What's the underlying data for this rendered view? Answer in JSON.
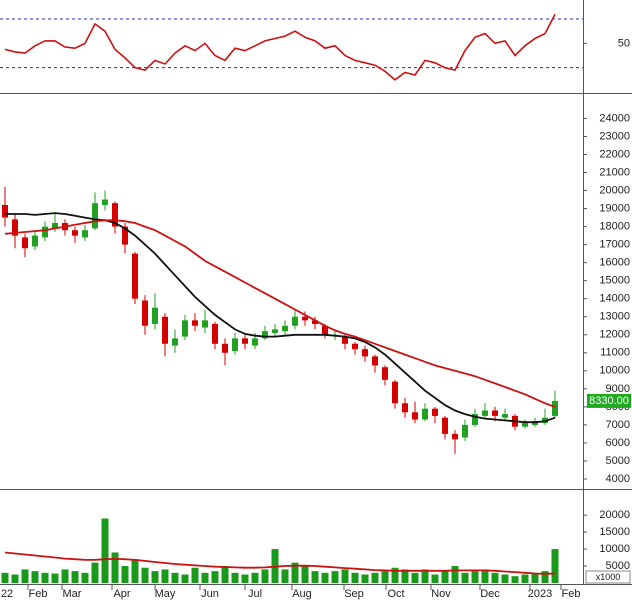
{
  "chart_data": [
    {
      "type": "line",
      "color": "#cc1111",
      "ylim": [
        10,
        84
      ],
      "yticks": [
        50
      ],
      "ref_lines": [
        30,
        70
      ],
      "ref_color": "#2233aa",
      "values": [
        45,
        43,
        42,
        48,
        52,
        52,
        47,
        46,
        50,
        66,
        60,
        45,
        38,
        30,
        28,
        36,
        33,
        42,
        48,
        44,
        50,
        40,
        36,
        46,
        44,
        48,
        52,
        54,
        56,
        60,
        55,
        52,
        46,
        48,
        40,
        36,
        34,
        32,
        27,
        20,
        26,
        24,
        36,
        34,
        30,
        28,
        44,
        55,
        58,
        50,
        52,
        40,
        48,
        54,
        58,
        74
      ]
    },
    {
      "type": "candlestick",
      "up_color": "#22a022",
      "down_color": "#d40000",
      "ylim": [
        3500,
        25300
      ],
      "yticks": [
        4000,
        5000,
        6000,
        7000,
        8000,
        9000,
        10000,
        11000,
        12000,
        13000,
        14000,
        15000,
        16000,
        17000,
        18000,
        19000,
        20000,
        21000,
        22000,
        23000,
        24000
      ],
      "open": [
        19200,
        18400,
        17400,
        16900,
        17400,
        17900,
        18200,
        17800,
        17400,
        17900,
        19200,
        19300,
        18000,
        16500,
        13900,
        12600,
        13000,
        11400,
        11900,
        12800,
        12400,
        12600,
        11500,
        11100,
        11800,
        11400,
        11800,
        12100,
        12200,
        12500,
        13000,
        12800,
        12500,
        12000,
        11900,
        11500,
        11200,
        10800,
        10200,
        9400,
        8200,
        7700,
        7300,
        7900,
        7400,
        6500,
        6300,
        7000,
        7500,
        7800,
        7400,
        7500,
        6900,
        7000,
        7100,
        7500
      ],
      "high": [
        20200,
        18700,
        17600,
        17800,
        18300,
        18800,
        18400,
        18000,
        18100,
        19900,
        20000,
        19400,
        18200,
        16600,
        14200,
        14300,
        13200,
        12300,
        13100,
        13200,
        13400,
        12700,
        11800,
        12100,
        12000,
        12100,
        12500,
        12600,
        12800,
        13400,
        13300,
        13000,
        12600,
        12300,
        12000,
        11600,
        11400,
        10900,
        10300,
        9500,
        8500,
        8300,
        8200,
        8000,
        7500,
        6700,
        7300,
        7900,
        8200,
        8000,
        7900,
        7600,
        7300,
        7400,
        7900,
        8900
      ],
      "low": [
        18000,
        16800,
        16300,
        16700,
        17200,
        17700,
        17500,
        17100,
        17200,
        17800,
        18900,
        17600,
        16500,
        13700,
        12000,
        12300,
        10800,
        11000,
        11700,
        12200,
        12100,
        11200,
        10300,
        10900,
        11200,
        11200,
        11700,
        11900,
        12000,
        12300,
        12500,
        12300,
        11800,
        11700,
        11200,
        10900,
        10500,
        9900,
        9200,
        7900,
        7400,
        7100,
        7200,
        7100,
        6200,
        5400,
        6100,
        6900,
        7400,
        7200,
        7200,
        6700,
        6800,
        6900,
        7000,
        7400
      ],
      "close": [
        18500,
        17500,
        16800,
        17500,
        18000,
        18200,
        17800,
        17500,
        17800,
        19300,
        19500,
        18000,
        17000,
        14000,
        12500,
        13500,
        11500,
        11800,
        12800,
        12500,
        12800,
        11500,
        11000,
        11800,
        11500,
        11800,
        12200,
        12300,
        12500,
        13000,
        12800,
        12600,
        12000,
        12000,
        11500,
        11200,
        10800,
        10300,
        9500,
        8200,
        7700,
        7300,
        7900,
        7500,
        6500,
        6200,
        7000,
        7600,
        7800,
        7500,
        7600,
        6900,
        7100,
        7200,
        7400,
        8330
      ],
      "close_label": "8330.00",
      "label_color": "#1faa1f",
      "overlays": [
        {
          "color": "#111111",
          "values": [
            18700,
            18700,
            18700,
            18650,
            18700,
            18750,
            18700,
            18600,
            18500,
            18400,
            18350,
            18200,
            17900,
            17500,
            17000,
            16500,
            15900,
            15300,
            14700,
            14100,
            13600,
            13100,
            12700,
            12300,
            12050,
            11950,
            11900,
            11900,
            11950,
            12000,
            12000,
            12000,
            12000,
            11950,
            11900,
            11800,
            11600,
            11300,
            10900,
            10400,
            9900,
            9400,
            8900,
            8500,
            8100,
            7800,
            7600,
            7450,
            7350,
            7300,
            7250,
            7200,
            7150,
            7150,
            7200,
            7400
          ]
        },
        {
          "color": "#cc1111",
          "values": [
            17600,
            17650,
            17700,
            17750,
            17800,
            17900,
            18000,
            18100,
            18200,
            18300,
            18350,
            18350,
            18300,
            18200,
            18000,
            17800,
            17500,
            17200,
            16900,
            16500,
            16100,
            15800,
            15500,
            15200,
            14900,
            14600,
            14300,
            14000,
            13700,
            13400,
            13100,
            12800,
            12500,
            12250,
            12050,
            11900,
            11700,
            11500,
            11300,
            11100,
            10900,
            10700,
            10500,
            10300,
            10150,
            10000,
            9850,
            9700,
            9500,
            9300,
            9100,
            8900,
            8700,
            8450,
            8200,
            8000
          ]
        }
      ]
    },
    {
      "type": "bar",
      "color": "#1a9a1a",
      "ylim": [
        0,
        27400
      ],
      "yticks": [
        5000,
        10000,
        15000,
        20000
      ],
      "unit_label": "x1000",
      "values": [
        3000,
        2500,
        4000,
        3500,
        3000,
        2800,
        4000,
        3500,
        3000,
        6000,
        19000,
        9000,
        5000,
        7000,
        4500,
        3500,
        4000,
        3000,
        2500,
        4500,
        3000,
        3500,
        5000,
        3000,
        2500,
        3000,
        4000,
        10000,
        4000,
        6000,
        5000,
        3500,
        3000,
        3500,
        4000,
        3000,
        2500,
        3000,
        3500,
        4500,
        4000,
        3000,
        4000,
        2500,
        3500,
        5000,
        3000,
        3500,
        4000,
        3000,
        2500,
        2000,
        2500,
        3000,
        3500,
        10000
      ],
      "overlays": [
        {
          "color": "#cc1111",
          "values": [
            9000,
            8700,
            8400,
            8100,
            7800,
            7500,
            7200,
            7000,
            6800,
            6800,
            7000,
            7100,
            7000,
            6800,
            6500,
            6200,
            5900,
            5600,
            5400,
            5200,
            5000,
            4800,
            4700,
            4600,
            4500,
            4500,
            4600,
            4800,
            5000,
            5100,
            5100,
            5000,
            4800,
            4600,
            4400,
            4200,
            4000,
            3800,
            3700,
            3600,
            3600,
            3600,
            3600,
            3600,
            3600,
            3700,
            3700,
            3700,
            3700,
            3600,
            3400,
            3200,
            3000,
            2800,
            2700,
            2800
          ]
        }
      ],
      "xlim": [
        -0.5,
        57.8
      ],
      "xticks": [
        {
          "value": 0.2,
          "label": "22"
        },
        {
          "value": 3.3,
          "label": "Feb"
        },
        {
          "value": 6.7,
          "label": "Mar"
        },
        {
          "value": 11.7,
          "label": "Apr"
        },
        {
          "value": 16,
          "label": "May"
        },
        {
          "value": 20.5,
          "label": "Jun"
        },
        {
          "value": 25,
          "label": "Jul"
        },
        {
          "value": 29.7,
          "label": "Aug"
        },
        {
          "value": 34.9,
          "label": "Sep"
        },
        {
          "value": 39.1,
          "label": "Oct"
        },
        {
          "value": 43.6,
          "label": "Nov"
        },
        {
          "value": 48.5,
          "label": "Dec"
        },
        {
          "value": 53.5,
          "label": "2023"
        },
        {
          "value": 56.6,
          "label": "Feb"
        }
      ]
    }
  ]
}
